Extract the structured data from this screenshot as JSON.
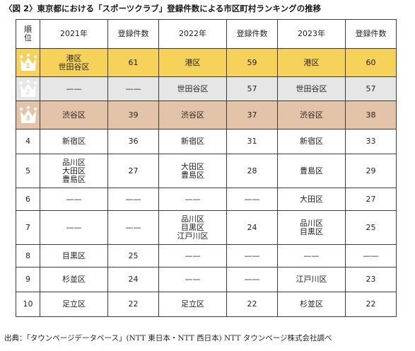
{
  "title": "〈図 2〉東京都における「スポーツクラブ」登録件数による市区町村ランキングの推移",
  "table": {
    "headers": {
      "rank": "順\n位",
      "y2021": "2021年",
      "y2022": "2022年",
      "y2023": "2023年",
      "count": "登録件数"
    },
    "rows": [
      {
        "rank": "1",
        "n2021": "港区\n世田谷区",
        "c2021": "61",
        "n2022": "港区",
        "c2022": "59",
        "n2023": "港区",
        "c2023": "60"
      },
      {
        "rank": "2",
        "n2021": "——",
        "c2021": "——",
        "n2022": "世田谷区",
        "c2022": "57",
        "n2023": "世田谷区",
        "c2023": "57"
      },
      {
        "rank": "3",
        "n2021": "渋谷区",
        "c2021": "39",
        "n2022": "渋谷区",
        "c2022": "37",
        "n2023": "渋谷区",
        "c2023": "38"
      },
      {
        "rank": "4",
        "n2021": "新宿区",
        "c2021": "36",
        "n2022": "新宿区",
        "c2022": "31",
        "n2023": "新宿区",
        "c2023": "33"
      },
      {
        "rank": "5",
        "n2021": "品川区\n大田区\n豊島区",
        "c2021": "27",
        "n2022": "大田区\n豊島区",
        "c2022": "28",
        "n2023": "豊島区",
        "c2023": "29"
      },
      {
        "rank": "6",
        "n2021": "——",
        "c2021": "——",
        "n2022": "——",
        "c2022": "——",
        "n2023": "大田区",
        "c2023": "27"
      },
      {
        "rank": "7",
        "n2021": "——",
        "c2021": "——",
        "n2022": "品川区\n目黒区\n江戸川区",
        "c2022": "24",
        "n2023": "品川区\n目黒区",
        "c2023": "25"
      },
      {
        "rank": "8",
        "n2021": "目黒区",
        "c2021": "25",
        "n2022": "——",
        "c2022": "——",
        "n2023": "——",
        "c2023": "——"
      },
      {
        "rank": "9",
        "n2021": "杉並区",
        "c2021": "24",
        "n2022": "——",
        "c2022": "——",
        "n2023": "江戸川区",
        "c2023": "23"
      },
      {
        "rank": "10",
        "n2021": "足立区",
        "c2021": "22",
        "n2022": "足立区",
        "c2022": "22",
        "n2023": "杉並区",
        "c2023": "22"
      }
    ]
  },
  "source": "出典：「タウンページデータベース」(NTT 東日本・NTT 西日本) NTT タウンページ株式会社調べ",
  "icons": {
    "r1": "gold-crown-icon",
    "r2": "silver-crown-icon",
    "r3": "bronze-crown-icon"
  },
  "colors": {
    "gold": "#f6d25a",
    "silver": "#e6e6e6",
    "bronze": "#e3c4a8",
    "crown_gold": "#ffffff",
    "crown_silver": "#ffffff",
    "crown_bronze": "#ffffff"
  }
}
